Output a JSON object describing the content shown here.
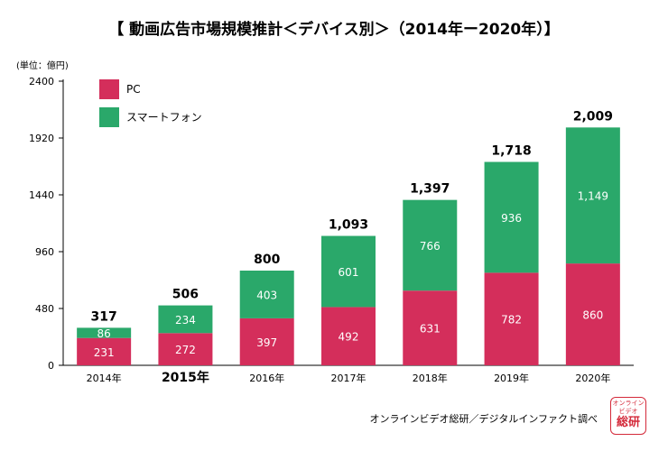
{
  "title": "【 動画広告市場規模推計＜デバイス別＞（2014年ー2020年）】",
  "unit_label": "(単位：億円)",
  "source": "オンラインビデオ総研／デジタルインファクト調べ",
  "logo": {
    "line1": "オンライン ビデオ",
    "line2": "総研"
  },
  "colors": {
    "pc": "#d42e5b",
    "smartphone": "#2aa86a",
    "axis": "#000000"
  },
  "chart_data": {
    "type": "bar",
    "stacked": true,
    "categories": [
      "2014年",
      "2015年",
      "2016年",
      "2017年",
      "2018年",
      "2019年",
      "2020年"
    ],
    "highlight_category": "2015年",
    "series": [
      {
        "name": "PC",
        "values": [
          231,
          272,
          397,
          492,
          631,
          782,
          860
        ]
      },
      {
        "name": "スマートフォン",
        "values": [
          86,
          234,
          403,
          601,
          766,
          936,
          1149
        ]
      }
    ],
    "series_labels": [
      [
        "231",
        "272",
        "397",
        "492",
        "631",
        "782",
        "860"
      ],
      [
        "86",
        "234",
        "403",
        "601",
        "766",
        "936",
        "1,149"
      ]
    ],
    "totals": [
      317,
      506,
      800,
      1093,
      1397,
      1718,
      2009
    ],
    "total_labels": [
      "317",
      "506",
      "800",
      "1,093",
      "1,397",
      "1,718",
      "2,009"
    ],
    "yticks": [
      0,
      480,
      960,
      1440,
      1920,
      2400
    ],
    "ylim": [
      0,
      2400
    ],
    "grid": false,
    "legend": "top-left",
    "xlabel": "",
    "ylabel": "(単位：億円)"
  }
}
